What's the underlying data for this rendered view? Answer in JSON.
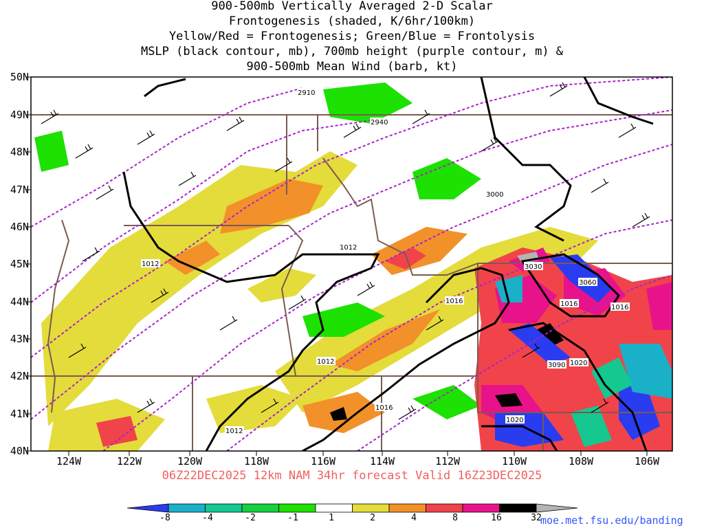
{
  "title_lines": [
    "900-500mb Vertically Averaged 2-D Scalar",
    "Frontogenesis (shaded, K/6hr/100km)",
    "Yellow/Red = Frontogenesis;  Green/Blue = Frontolysis",
    "MSLP (black contour, mb), 700mb height (purple contour, m) &",
    "900-500mb Mean Wind (barb, kt)"
  ],
  "latitude_labels": [
    "50N",
    "49N",
    "48N",
    "47N",
    "46N",
    "45N",
    "44N",
    "43N",
    "42N",
    "41N",
    "40N"
  ],
  "longitude_labels": [
    "124W",
    "122W",
    "120W",
    "118W",
    "116W",
    "114W",
    "112W",
    "110W",
    "108W",
    "106W"
  ],
  "mslp_contour_labels": [
    "1012",
    "1012",
    "1012",
    "1012",
    "1016",
    "1016",
    "1016",
    "1016",
    "1020",
    "1020"
  ],
  "height_contour_labels": [
    "2910",
    "2940",
    "3000",
    "3030",
    "3060",
    "3090"
  ],
  "valid_line": "06Z22DEC2025 12km NAM 34hr forecast Valid 16Z23DEC2025",
  "colorbar": {
    "labels": [
      "-8",
      "-4",
      "-2",
      "-1",
      "1",
      "2",
      "4",
      "8",
      "16",
      "32"
    ],
    "colors": [
      "#2a3cf0",
      "#1ab0c8",
      "#14c890",
      "#16d040",
      "#1de100",
      "#ffffff",
      "#e3dc3a",
      "#f2902a",
      "#f0444a",
      "#e8138a",
      "#000000",
      "#b4b4b4"
    ]
  },
  "credit": "moe.met.fsu.edu/banding"
}
